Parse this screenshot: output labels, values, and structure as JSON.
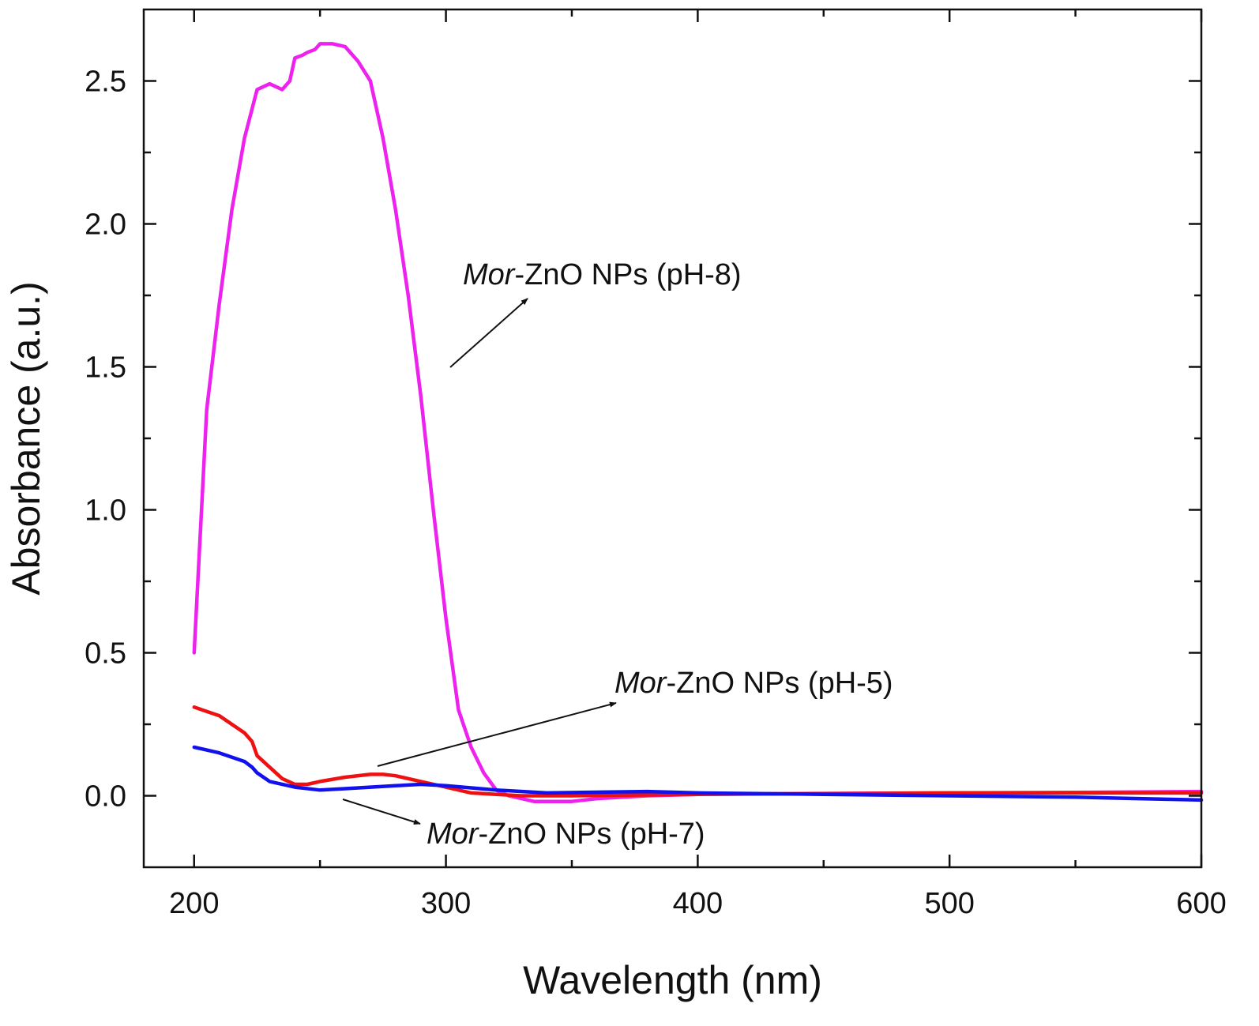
{
  "chart_data": {
    "type": "line",
    "xlabel": "Wavelength (nm)",
    "ylabel": "Absorbance (a.u.)",
    "xlim": [
      180,
      600
    ],
    "ylim": [
      -0.25,
      2.75
    ],
    "xticks": [
      200,
      300,
      400,
      500,
      600
    ],
    "yticks": [
      0.0,
      0.5,
      1.0,
      1.5,
      2.0,
      2.5
    ],
    "xtick_labels": [
      "200",
      "300",
      "400",
      "500",
      "600"
    ],
    "ytick_labels": [
      "0.0",
      "0.5",
      "1.0",
      "1.5",
      "2.0",
      "2.5"
    ],
    "grid": false,
    "legend": "none",
    "series": [
      {
        "name": "Mor-ZnO NPs (pH-8)",
        "color": "#ee22ee",
        "x": [
          200,
          205,
          210,
          215,
          220,
          225,
          230,
          235,
          238,
          240,
          243,
          245,
          248,
          250,
          255,
          260,
          265,
          270,
          275,
          280,
          285,
          290,
          295,
          300,
          305,
          310,
          315,
          320,
          325,
          330,
          335,
          340,
          350,
          360,
          380,
          400,
          450,
          500,
          550,
          600
        ],
        "y": [
          0.5,
          1.35,
          1.72,
          2.05,
          2.3,
          2.47,
          2.49,
          2.47,
          2.5,
          2.58,
          2.59,
          2.6,
          2.61,
          2.63,
          2.63,
          2.62,
          2.57,
          2.5,
          2.3,
          2.05,
          1.75,
          1.4,
          1.0,
          0.62,
          0.3,
          0.17,
          0.08,
          0.02,
          0.0,
          -0.01,
          -0.02,
          -0.02,
          -0.02,
          -0.01,
          0.0,
          0.005,
          0.008,
          0.01,
          0.012,
          0.015
        ]
      },
      {
        "name": "Mor-ZnO NPs (pH-5)",
        "color": "#ee1111",
        "x": [
          200,
          210,
          220,
          223,
          225,
          230,
          235,
          240,
          245,
          250,
          260,
          270,
          275,
          280,
          290,
          300,
          310,
          320,
          330,
          350,
          400,
          500,
          600
        ],
        "y": [
          0.31,
          0.28,
          0.22,
          0.19,
          0.14,
          0.1,
          0.06,
          0.04,
          0.04,
          0.05,
          0.065,
          0.075,
          0.075,
          0.07,
          0.05,
          0.03,
          0.01,
          0.005,
          0.0,
          0.0,
          0.005,
          0.01,
          0.01
        ]
      },
      {
        "name": "Mor-ZnO NPs (pH-7)",
        "color": "#1111ee",
        "x": [
          200,
          210,
          220,
          223,
          225,
          230,
          240,
          250,
          260,
          270,
          280,
          290,
          300,
          320,
          340,
          380,
          400,
          450,
          500,
          550,
          600
        ],
        "y": [
          0.17,
          0.15,
          0.12,
          0.1,
          0.08,
          0.05,
          0.03,
          0.02,
          0.025,
          0.03,
          0.035,
          0.04,
          0.035,
          0.02,
          0.01,
          0.015,
          0.01,
          0.005,
          0.0,
          -0.005,
          -0.015
        ]
      }
    ],
    "annotations": [
      {
        "italic": "Mor",
        "rest": "-ZnO NPs (pH-8)",
        "series": "Mor-ZnO NPs (pH-8)"
      },
      {
        "italic": "Mor",
        "rest": "-ZnO NPs (pH-5)",
        "series": "Mor-ZnO NPs (pH-5)"
      },
      {
        "italic": "Mor",
        "rest": "-ZnO NPs (pH-7)",
        "series": "Mor-ZnO NPs (pH-7)"
      }
    ]
  }
}
